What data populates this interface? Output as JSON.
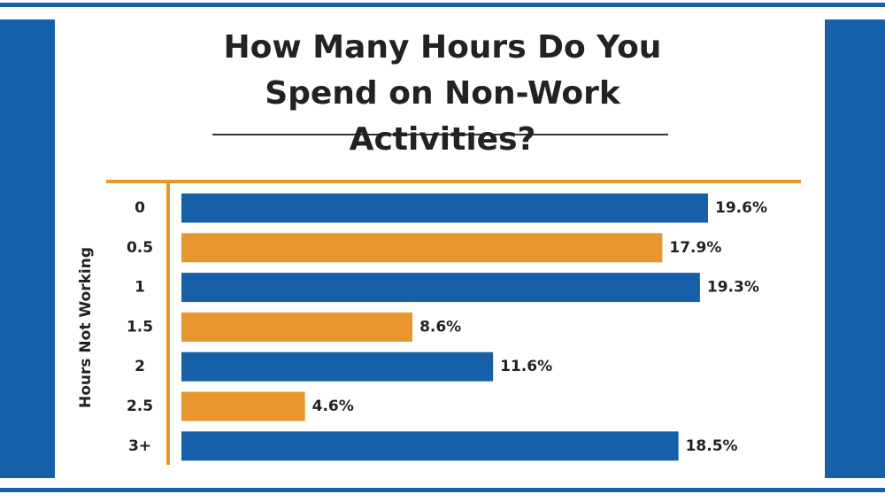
{
  "chart_data": {
    "type": "bar",
    "orientation": "horizontal",
    "title": "How Many Hours Do You Spend on Non-Work Activities?",
    "y_label": "Hours Not Working",
    "categories": [
      "0",
      "0.5",
      "1",
      "1.5",
      "2",
      "2.5",
      "3+"
    ],
    "values": [
      19.6,
      17.9,
      19.3,
      8.6,
      11.6,
      4.6,
      18.5
    ],
    "value_labels": [
      "19.6%",
      "17.9%",
      "19.3%",
      "8.6%",
      "11.6%",
      "4.6%",
      "18.5%"
    ],
    "colors": [
      "#1560a8",
      "#e8962e",
      "#1560a8",
      "#e8962e",
      "#1560a8",
      "#e8962e",
      "#1560a8"
    ]
  }
}
